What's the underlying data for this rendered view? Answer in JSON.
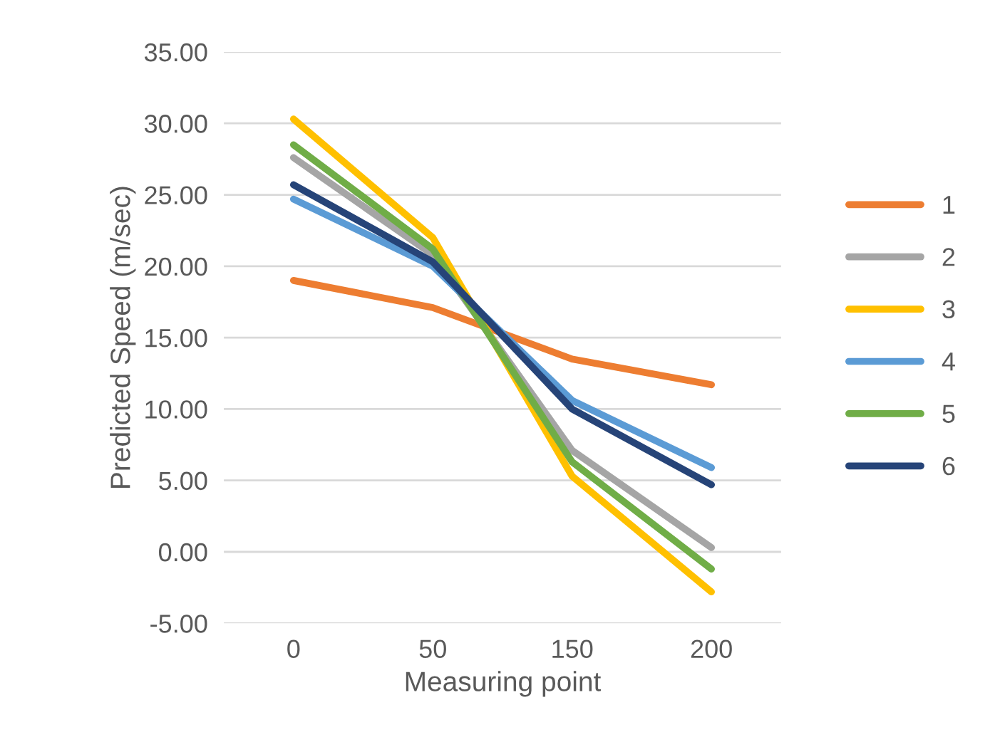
{
  "chart_data": {
    "type": "line",
    "xlabel": "Measuring point",
    "ylabel": "Predicted Speed (m/sec)",
    "categories": [
      "0",
      "50",
      "150",
      "200"
    ],
    "ylim": [
      -5,
      35
    ],
    "yticks": [
      {
        "value": -5,
        "label": "-5.00"
      },
      {
        "value": 0,
        "label": "0.00"
      },
      {
        "value": 5,
        "label": "5.00"
      },
      {
        "value": 10,
        "label": "10.00"
      },
      {
        "value": 15,
        "label": "15.00"
      },
      {
        "value": 20,
        "label": "20.00"
      },
      {
        "value": 25,
        "label": "25.00"
      },
      {
        "value": 30,
        "label": "30.00"
      },
      {
        "value": 35,
        "label": "35.00"
      }
    ],
    "grid": "y",
    "legend": "right",
    "marker": "none",
    "line_style": "solid",
    "series": [
      {
        "name": "1",
        "color": "#ed7d31",
        "values": [
          19.0,
          17.1,
          13.5,
          11.7
        ]
      },
      {
        "name": "2",
        "color": "#a5a5a5",
        "values": [
          27.6,
          20.8,
          7.1,
          0.3
        ]
      },
      {
        "name": "3",
        "color": "#ffc000",
        "values": [
          30.3,
          22.0,
          5.3,
          -2.8
        ]
      },
      {
        "name": "4",
        "color": "#5b9bd5",
        "values": [
          24.7,
          20.0,
          10.6,
          5.9
        ]
      },
      {
        "name": "5",
        "color": "#70ad47",
        "values": [
          28.5,
          21.2,
          6.3,
          -1.2
        ]
      },
      {
        "name": "6",
        "color": "#264478",
        "values": [
          25.7,
          20.3,
          10.0,
          4.7
        ]
      }
    ]
  }
}
